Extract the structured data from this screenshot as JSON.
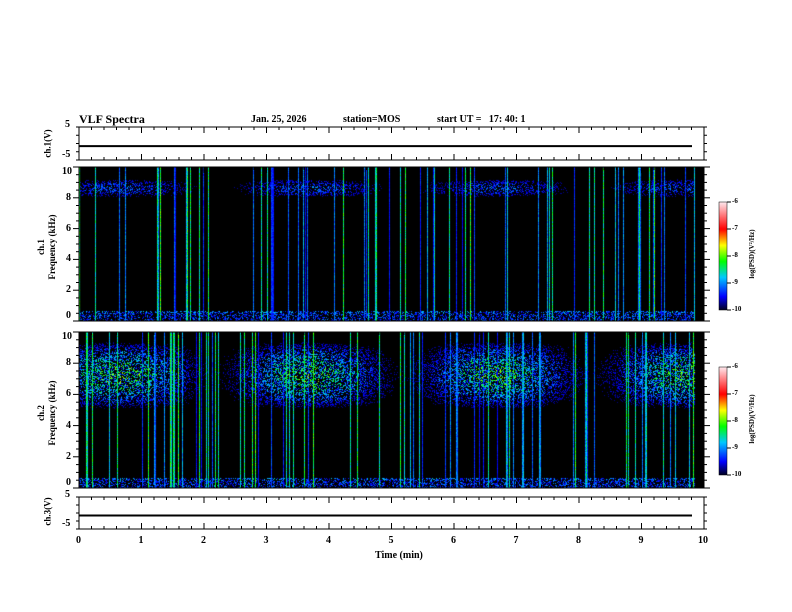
{
  "header": {
    "title": "VLF Spectra",
    "date": "Jan. 25, 2026",
    "station": "station=MOS",
    "start": "start UT =   17: 40: 1"
  },
  "chart_data": {
    "type": "heatmap",
    "x": {
      "label": "Time (min)",
      "range": [
        0,
        10
      ],
      "ticks": [
        "0",
        "1",
        "2",
        "3",
        "4",
        "5",
        "6",
        "7",
        "8",
        "9",
        "10"
      ]
    },
    "panels": [
      {
        "name": "ch.1(V)",
        "kind": "waveform",
        "ylim": [
          -5,
          5
        ],
        "ticks": [
          "5",
          "-5"
        ],
        "level": 0
      },
      {
        "name": "ch.1",
        "ylabel": "Frequency (kHz)",
        "kind": "spectrogram",
        "ylim": [
          0,
          10
        ],
        "ticks": [
          "0",
          "2",
          "4",
          "6",
          "8",
          "10"
        ],
        "band_khz": [
          8,
          9.3
        ],
        "data_end_min": 9.85
      },
      {
        "name": "ch.2",
        "ylabel": "Frequency (kHz)",
        "kind": "spectrogram",
        "ylim": [
          0,
          10
        ],
        "ticks": [
          "0",
          "2",
          "4",
          "6",
          "8",
          "10"
        ],
        "band_khz": [
          5,
          9.5
        ],
        "data_end_min": 9.85
      },
      {
        "name": "ch.3(V)",
        "kind": "waveform",
        "ylim": [
          -5,
          5
        ],
        "ticks": [
          "5",
          "-5"
        ],
        "level": 0
      }
    ],
    "colorbar": {
      "label": "log(PSD)(V²/Hz)",
      "range": [
        -10,
        -6
      ],
      "ticks": [
        "-6",
        "-7",
        "-8",
        "-9",
        "-10"
      ]
    }
  }
}
